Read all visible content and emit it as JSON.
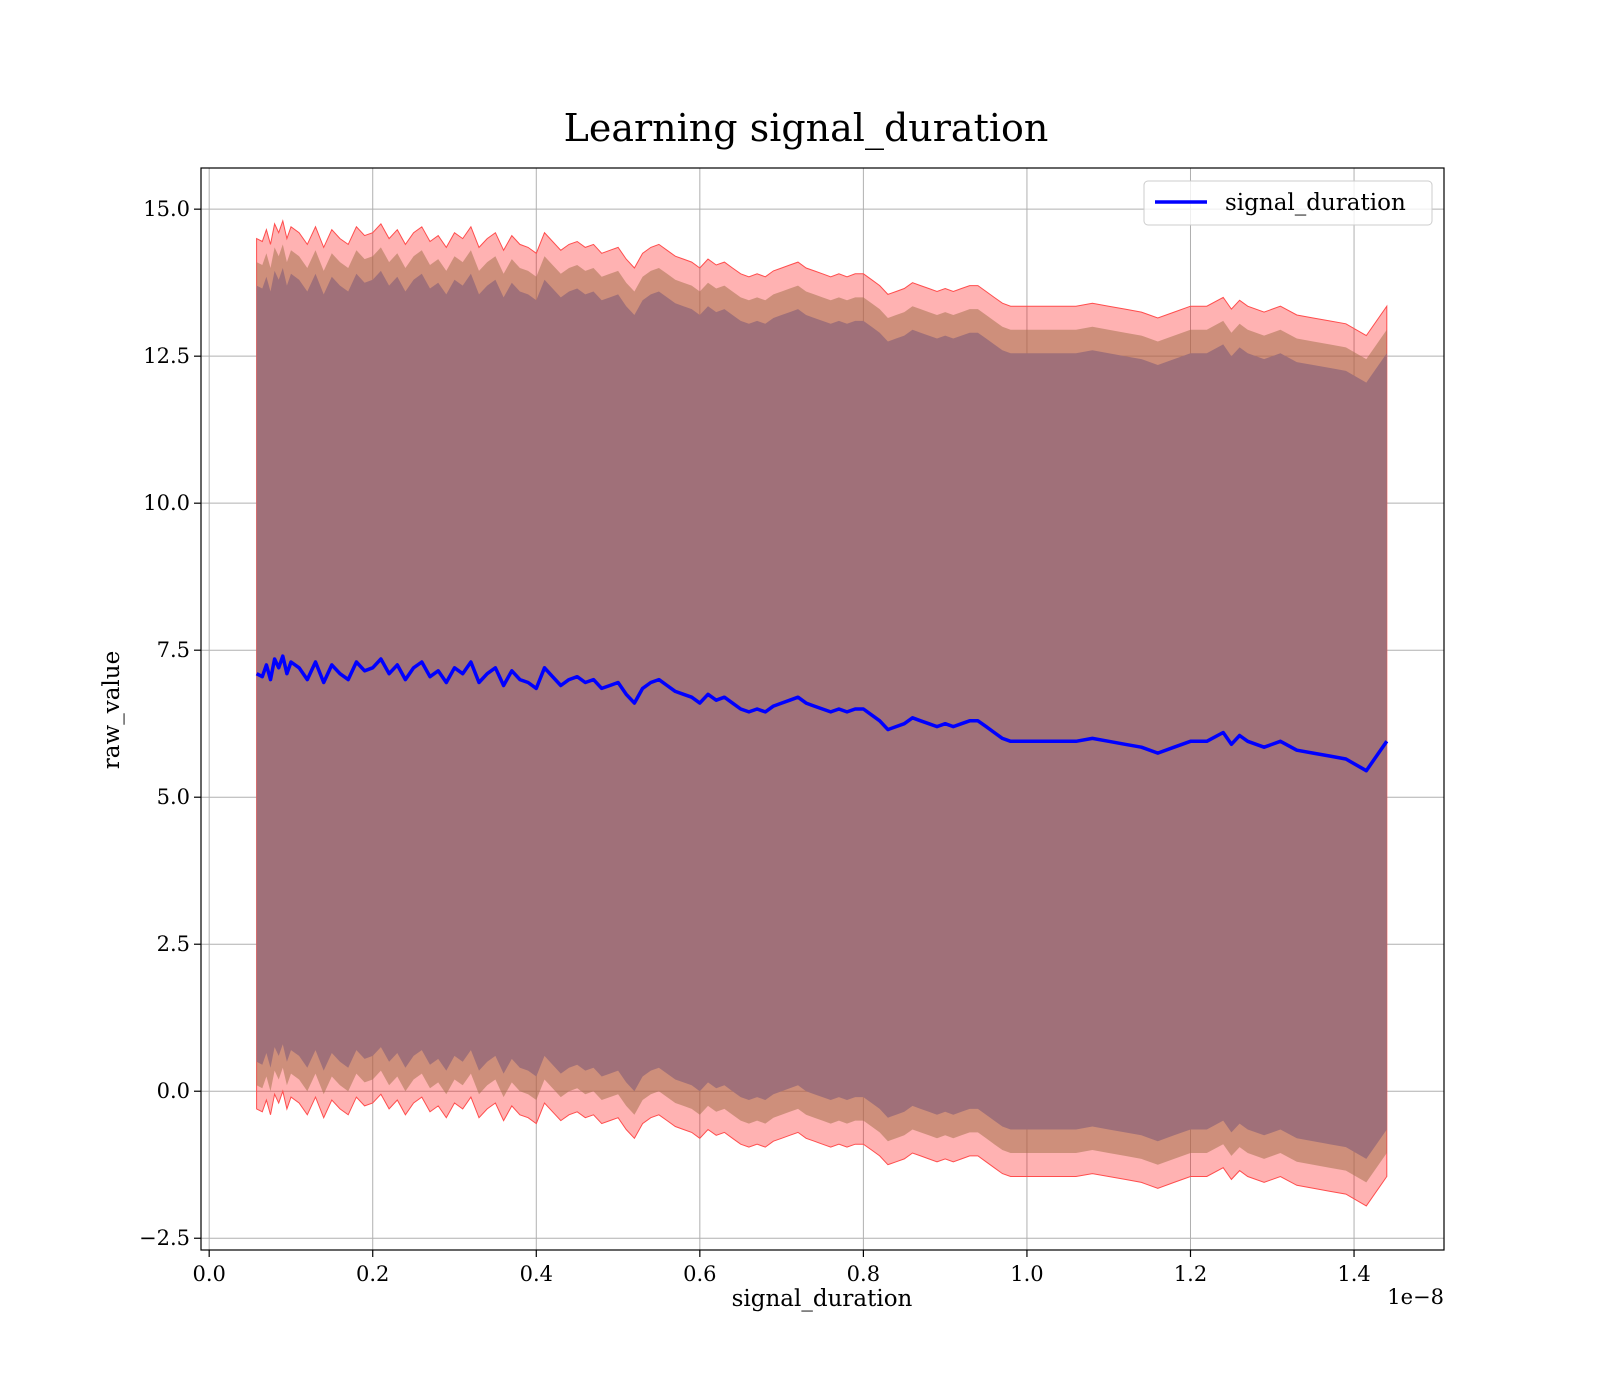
{
  "chart_data": {
    "type": "line",
    "title": "Learning signal_duration",
    "xlabel": "signal_duration",
    "ylabel": "raw_value",
    "x_offset_text": "1e−8",
    "xlim": [
      -0.01,
      1.51
    ],
    "ylim": [
      -2.7,
      15.7
    ],
    "x_ticks": [
      0.0,
      0.2,
      0.4,
      0.6,
      0.8,
      1.0,
      1.2,
      1.4
    ],
    "x_tick_labels": [
      "0.0",
      "0.2",
      "0.4",
      "0.6",
      "0.8",
      "1.0",
      "1.2",
      "1.4"
    ],
    "y_ticks": [
      -2.5,
      0.0,
      2.5,
      5.0,
      7.5,
      10.0,
      12.5,
      15.0
    ],
    "y_tick_labels": [
      "−2.5",
      "0.0",
      "2.5",
      "5.0",
      "7.5",
      "10.0",
      "12.5",
      "15.0"
    ],
    "grid": true,
    "legend_position": "top-right",
    "series": [
      {
        "name": "signal_duration",
        "color": "#0000ff",
        "x": [
          0.058,
          0.065,
          0.07,
          0.075,
          0.08,
          0.085,
          0.09,
          0.095,
          0.1,
          0.11,
          0.12,
          0.13,
          0.14,
          0.15,
          0.16,
          0.17,
          0.18,
          0.19,
          0.2,
          0.21,
          0.22,
          0.23,
          0.24,
          0.25,
          0.26,
          0.27,
          0.28,
          0.29,
          0.3,
          0.31,
          0.32,
          0.33,
          0.34,
          0.35,
          0.36,
          0.37,
          0.38,
          0.39,
          0.4,
          0.41,
          0.42,
          0.43,
          0.44,
          0.45,
          0.46,
          0.47,
          0.48,
          0.49,
          0.5,
          0.51,
          0.52,
          0.53,
          0.54,
          0.55,
          0.56,
          0.57,
          0.58,
          0.59,
          0.6,
          0.61,
          0.62,
          0.63,
          0.64,
          0.65,
          0.66,
          0.67,
          0.68,
          0.69,
          0.7,
          0.71,
          0.72,
          0.73,
          0.74,
          0.75,
          0.76,
          0.77,
          0.78,
          0.79,
          0.8,
          0.81,
          0.82,
          0.83,
          0.84,
          0.85,
          0.86,
          0.87,
          0.88,
          0.89,
          0.9,
          0.91,
          0.92,
          0.93,
          0.94,
          0.95,
          0.96,
          0.97,
          0.98,
          0.99,
          1.0,
          1.02,
          1.04,
          1.06,
          1.08,
          1.1,
          1.12,
          1.14,
          1.16,
          1.18,
          1.2,
          1.22,
          1.24,
          1.25,
          1.26,
          1.27,
          1.29,
          1.31,
          1.33,
          1.35,
          1.37,
          1.39,
          1.415,
          1.44
        ],
        "values": [
          7.1,
          7.05,
          7.25,
          7.0,
          7.35,
          7.2,
          7.4,
          7.1,
          7.3,
          7.2,
          7.0,
          7.3,
          6.95,
          7.25,
          7.1,
          7.0,
          7.3,
          7.15,
          7.2,
          7.35,
          7.1,
          7.25,
          7.0,
          7.2,
          7.3,
          7.05,
          7.15,
          6.95,
          7.2,
          7.1,
          7.3,
          6.95,
          7.1,
          7.2,
          6.9,
          7.15,
          7.0,
          6.95,
          6.85,
          7.2,
          7.05,
          6.9,
          7.0,
          7.05,
          6.95,
          7.0,
          6.85,
          6.9,
          6.95,
          6.75,
          6.6,
          6.85,
          6.95,
          7.0,
          6.9,
          6.8,
          6.75,
          6.7,
          6.6,
          6.75,
          6.65,
          6.7,
          6.6,
          6.5,
          6.45,
          6.5,
          6.45,
          6.55,
          6.6,
          6.65,
          6.7,
          6.6,
          6.55,
          6.5,
          6.45,
          6.5,
          6.45,
          6.5,
          6.5,
          6.4,
          6.3,
          6.15,
          6.2,
          6.25,
          6.35,
          6.3,
          6.25,
          6.2,
          6.25,
          6.2,
          6.25,
          6.3,
          6.3,
          6.2,
          6.1,
          6.0,
          5.95,
          5.95,
          5.95,
          5.95,
          5.95,
          5.95,
          6.0,
          5.95,
          5.9,
          5.85,
          5.75,
          5.85,
          5.95,
          5.95,
          6.1,
          5.9,
          6.05,
          5.95,
          5.85,
          5.95,
          5.8,
          5.75,
          5.7,
          5.65,
          5.45,
          5.95
        ],
        "band_half_widths_data_units": {
          "outer": 7.4,
          "middle": 7.0,
          "inner": 6.6
        }
      }
    ]
  }
}
